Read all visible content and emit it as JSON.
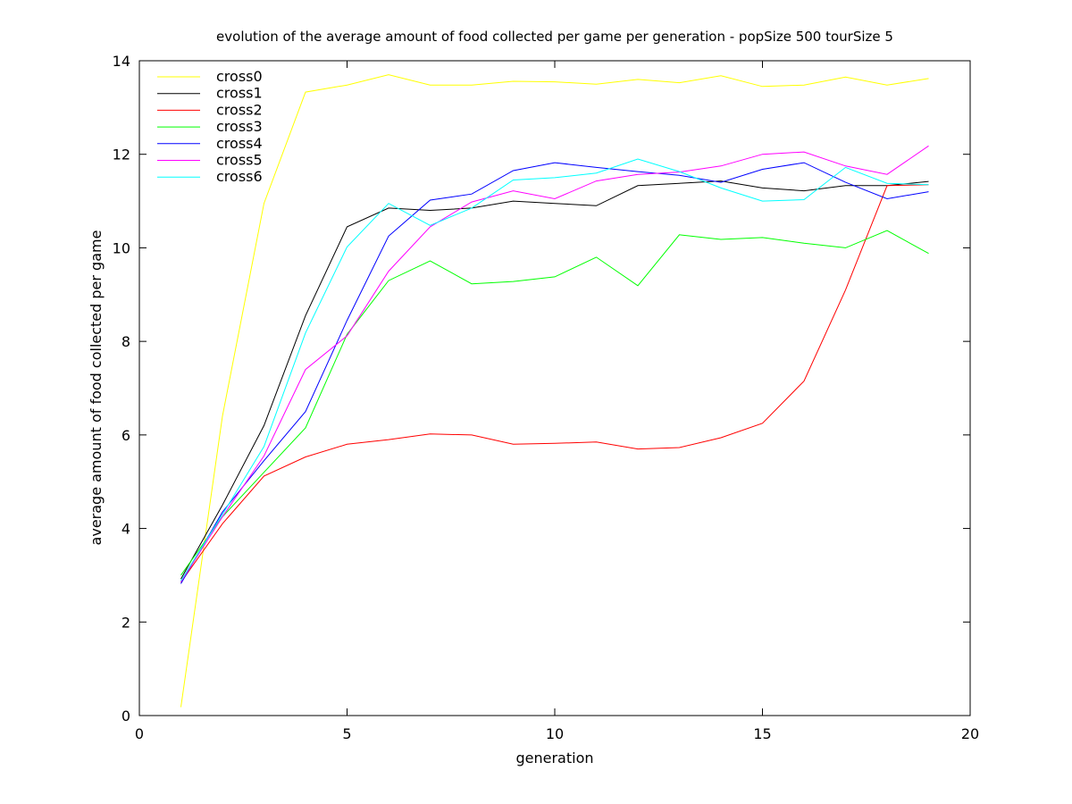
{
  "chart_data": {
    "type": "line",
    "title": "evolution of the average amount of food collected per game per generation - popSize 500 tourSize 5",
    "xlabel": "generation",
    "ylabel": "average amount of food collected per game",
    "xlim": [
      0,
      20
    ],
    "ylim": [
      0,
      14
    ],
    "xticks": [
      0,
      5,
      10,
      15,
      20
    ],
    "yticks": [
      0,
      2,
      4,
      6,
      8,
      10,
      12,
      14
    ],
    "grid": false,
    "legend_position": "top-left",
    "x": [
      1,
      2,
      3,
      4,
      5,
      6,
      7,
      8,
      9,
      10,
      11,
      12,
      13,
      14,
      15,
      16,
      17,
      18,
      19
    ],
    "series": [
      {
        "name": "cross0",
        "color": "#ffff00",
        "values": [
          0.18,
          6.4,
          10.95,
          13.33,
          13.48,
          13.7,
          13.48,
          13.48,
          13.56,
          13.55,
          13.5,
          13.6,
          13.53,
          13.68,
          13.45,
          13.48,
          13.65,
          13.48,
          13.62
        ]
      },
      {
        "name": "cross1",
        "color": "#000000",
        "values": [
          2.92,
          4.5,
          6.2,
          8.55,
          10.45,
          10.85,
          10.8,
          10.85,
          11.0,
          10.95,
          10.9,
          11.33,
          11.38,
          11.43,
          11.28,
          11.22,
          11.33,
          11.33,
          11.42
        ]
      },
      {
        "name": "cross2",
        "color": "#ff0000",
        "values": [
          2.85,
          4.1,
          5.12,
          5.53,
          5.8,
          5.9,
          6.02,
          6.0,
          5.8,
          5.82,
          5.85,
          5.7,
          5.73,
          5.94,
          6.25,
          7.15,
          9.1,
          11.33,
          11.35
        ]
      },
      {
        "name": "cross3",
        "color": "#00ff00",
        "values": [
          3.0,
          4.25,
          5.2,
          6.15,
          8.15,
          9.3,
          9.72,
          9.23,
          9.28,
          9.38,
          9.8,
          9.19,
          10.28,
          10.18,
          10.22,
          10.1,
          10.0,
          10.37,
          9.88
        ]
      },
      {
        "name": "cross4",
        "color": "#0000ff",
        "values": [
          2.82,
          4.35,
          5.45,
          6.5,
          8.45,
          10.25,
          11.02,
          11.15,
          11.65,
          11.82,
          11.72,
          11.63,
          11.55,
          11.4,
          11.68,
          11.82,
          11.4,
          11.05,
          11.2
        ]
      },
      {
        "name": "cross5",
        "color": "#ff00ff",
        "values": [
          2.86,
          4.25,
          5.55,
          7.4,
          8.12,
          9.5,
          10.45,
          10.98,
          11.22,
          11.05,
          11.43,
          11.57,
          11.62,
          11.75,
          12.0,
          12.05,
          11.75,
          11.57,
          12.18
        ]
      },
      {
        "name": "cross6",
        "color": "#00ffff",
        "values": [
          2.88,
          4.3,
          5.75,
          8.18,
          10.02,
          10.95,
          10.48,
          10.85,
          11.45,
          11.5,
          11.6,
          11.9,
          11.63,
          11.28,
          11.0,
          11.03,
          11.72,
          11.38,
          11.35
        ]
      }
    ]
  }
}
